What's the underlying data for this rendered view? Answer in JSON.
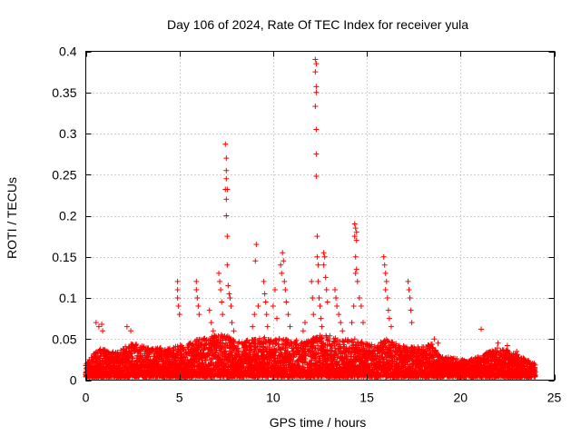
{
  "chart_data": {
    "type": "scatter",
    "title": "Day 106 of 2024, Rate Of TEC Index for receiver yula",
    "xlabel": "GPS time / hours",
    "ylabel": "ROTI / TECUs",
    "xlim": [
      0,
      25
    ],
    "ylim": [
      0,
      0.4
    ],
    "x_ticks": [
      0,
      5,
      10,
      15,
      20,
      25
    ],
    "y_ticks": [
      0,
      0.05,
      0.1,
      0.15,
      0.2,
      0.25,
      0.3,
      0.35,
      0.4
    ],
    "x_tick_labels": [
      "0",
      "5",
      "10",
      "15",
      "20",
      "25"
    ],
    "y_tick_labels": [
      "0",
      "0.05",
      "0.1",
      "0.15",
      "0.2",
      "0.25",
      "0.3",
      "0.35",
      "0.4"
    ],
    "grid": true,
    "marker": "+",
    "color": "#ff0000",
    "series": [
      {
        "name": "ROTI",
        "points": [
          [
            0.55,
            0.07
          ],
          [
            0.7,
            0.065
          ],
          [
            0.85,
            0.068
          ],
          [
            0.9,
            0.06
          ],
          [
            2.2,
            0.065
          ],
          [
            2.4,
            0.06
          ],
          [
            4.9,
            0.12
          ],
          [
            4.9,
            0.11
          ],
          [
            4.9,
            0.1
          ],
          [
            4.95,
            0.09
          ],
          [
            5.0,
            0.08
          ],
          [
            5.9,
            0.12
          ],
          [
            5.9,
            0.11
          ],
          [
            5.95,
            0.1
          ],
          [
            6.0,
            0.09
          ],
          [
            6.05,
            0.08
          ],
          [
            6.6,
            0.085
          ],
          [
            6.7,
            0.07
          ],
          [
            6.8,
            0.06
          ],
          [
            7.1,
            0.13
          ],
          [
            7.15,
            0.12
          ],
          [
            7.2,
            0.11
          ],
          [
            7.25,
            0.095
          ],
          [
            7.3,
            0.08
          ],
          [
            7.45,
            0.287
          ],
          [
            7.5,
            0.27
          ],
          [
            7.5,
            0.255
          ],
          [
            7.5,
            0.245
          ],
          [
            7.45,
            0.232
          ],
          [
            7.55,
            0.232
          ],
          [
            7.5,
            0.22
          ],
          [
            7.5,
            0.2
          ],
          [
            7.55,
            0.175
          ],
          [
            7.55,
            0.14
          ],
          [
            7.6,
            0.115
          ],
          [
            7.65,
            0.105
          ],
          [
            7.7,
            0.1
          ],
          [
            7.75,
            0.09
          ],
          [
            7.8,
            0.07
          ],
          [
            7.9,
            0.06
          ],
          [
            8.9,
            0.065
          ],
          [
            9.0,
            0.08
          ],
          [
            9.05,
            0.145
          ],
          [
            9.1,
            0.165
          ],
          [
            9.2,
            0.09
          ],
          [
            9.5,
            0.12
          ],
          [
            9.55,
            0.105
          ],
          [
            9.6,
            0.095
          ],
          [
            9.65,
            0.08
          ],
          [
            9.7,
            0.065
          ],
          [
            10.0,
            0.09
          ],
          [
            10.1,
            0.11
          ],
          [
            10.2,
            0.075
          ],
          [
            10.4,
            0.14
          ],
          [
            10.45,
            0.13
          ],
          [
            10.5,
            0.155
          ],
          [
            10.55,
            0.145
          ],
          [
            10.6,
            0.12
          ],
          [
            10.65,
            0.11
          ],
          [
            10.7,
            0.095
          ],
          [
            10.8,
            0.08
          ],
          [
            10.9,
            0.065
          ],
          [
            11.6,
            0.06
          ],
          [
            11.7,
            0.07
          ],
          [
            12.05,
            0.12
          ],
          [
            12.1,
            0.1
          ],
          [
            12.15,
            0.08
          ],
          [
            12.25,
            0.39
          ],
          [
            12.3,
            0.385
          ],
          [
            12.25,
            0.375
          ],
          [
            12.3,
            0.357
          ],
          [
            12.3,
            0.35
          ],
          [
            12.25,
            0.333
          ],
          [
            12.3,
            0.305
          ],
          [
            12.3,
            0.275
          ],
          [
            12.3,
            0.248
          ],
          [
            12.35,
            0.175
          ],
          [
            12.35,
            0.15
          ],
          [
            12.4,
            0.14
          ],
          [
            12.4,
            0.12
          ],
          [
            12.45,
            0.1
          ],
          [
            12.5,
            0.09
          ],
          [
            12.55,
            0.075
          ],
          [
            12.6,
            0.065
          ],
          [
            12.7,
            0.155
          ],
          [
            12.75,
            0.15
          ],
          [
            12.7,
            0.14
          ],
          [
            12.8,
            0.125
          ],
          [
            12.85,
            0.11
          ],
          [
            12.9,
            0.095
          ],
          [
            13.3,
            0.11
          ],
          [
            13.35,
            0.1
          ],
          [
            13.4,
            0.09
          ],
          [
            13.5,
            0.08
          ],
          [
            13.6,
            0.07
          ],
          [
            13.7,
            0.06
          ],
          [
            14.2,
            0.07
          ],
          [
            14.3,
            0.09
          ],
          [
            14.35,
            0.19
          ],
          [
            14.4,
            0.185
          ],
          [
            14.45,
            0.18
          ],
          [
            14.35,
            0.175
          ],
          [
            14.45,
            0.17
          ],
          [
            14.4,
            0.15
          ],
          [
            14.45,
            0.135
          ],
          [
            14.4,
            0.13
          ],
          [
            14.5,
            0.12
          ],
          [
            14.6,
            0.1
          ],
          [
            14.7,
            0.09
          ],
          [
            14.8,
            0.07
          ],
          [
            15.9,
            0.15
          ],
          [
            15.95,
            0.14
          ],
          [
            16.0,
            0.13
          ],
          [
            16.05,
            0.12
          ],
          [
            16.0,
            0.11
          ],
          [
            16.1,
            0.1
          ],
          [
            16.15,
            0.085
          ],
          [
            16.2,
            0.075
          ],
          [
            16.3,
            0.065
          ],
          [
            17.2,
            0.12
          ],
          [
            17.25,
            0.11
          ],
          [
            17.3,
            0.1
          ],
          [
            17.35,
            0.085
          ],
          [
            17.4,
            0.07
          ],
          [
            18.6,
            0.05
          ],
          [
            18.8,
            0.045
          ],
          [
            21.1,
            0.062
          ],
          [
            22.0,
            0.045
          ],
          [
            22.5,
            0.042
          ],
          [
            23.0,
            0.035
          ]
        ]
      }
    ],
    "background_band": [
      [
        0,
        0.02
      ],
      [
        0.5,
        0.035
      ],
      [
        1.0,
        0.04
      ],
      [
        1.5,
        0.034
      ],
      [
        2.0,
        0.04
      ],
      [
        2.5,
        0.045
      ],
      [
        3.0,
        0.042
      ],
      [
        3.5,
        0.038
      ],
      [
        4.0,
        0.04
      ],
      [
        4.5,
        0.04
      ],
      [
        5.0,
        0.042
      ],
      [
        5.5,
        0.045
      ],
      [
        6.0,
        0.05
      ],
      [
        6.5,
        0.052
      ],
      [
        7.0,
        0.055
      ],
      [
        7.5,
        0.055
      ],
      [
        8.0,
        0.05
      ],
      [
        8.5,
        0.048
      ],
      [
        9.0,
        0.05
      ],
      [
        9.5,
        0.052
      ],
      [
        10.0,
        0.05
      ],
      [
        10.5,
        0.052
      ],
      [
        11.0,
        0.05
      ],
      [
        11.5,
        0.048
      ],
      [
        12.0,
        0.05
      ],
      [
        12.5,
        0.055
      ],
      [
        13.0,
        0.055
      ],
      [
        13.5,
        0.05
      ],
      [
        14.0,
        0.05
      ],
      [
        14.5,
        0.05
      ],
      [
        15.0,
        0.045
      ],
      [
        15.5,
        0.042
      ],
      [
        16.0,
        0.05
      ],
      [
        16.5,
        0.045
      ],
      [
        17.0,
        0.042
      ],
      [
        17.5,
        0.04
      ],
      [
        18.0,
        0.042
      ],
      [
        18.5,
        0.045
      ],
      [
        19.0,
        0.03
      ],
      [
        19.5,
        0.028
      ],
      [
        20.0,
        0.025
      ],
      [
        20.5,
        0.025
      ],
      [
        21.0,
        0.03
      ],
      [
        21.5,
        0.035
      ],
      [
        22.0,
        0.04
      ],
      [
        22.5,
        0.038
      ],
      [
        23.0,
        0.032
      ],
      [
        23.5,
        0.025
      ],
      [
        24.0,
        0.02
      ]
    ]
  }
}
